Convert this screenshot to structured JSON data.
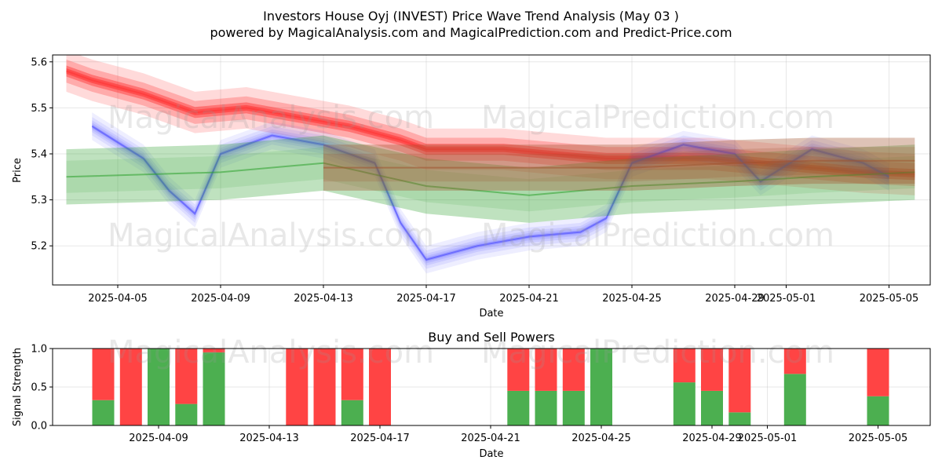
{
  "title_line1": "Investors House Oyj (INVEST) Price Wave Trend Analysis (May 03 )",
  "title_line2": "powered by MagicalAnalysis.com and MagicalPrediction.com and Predict-Price.com",
  "watermarks": [
    "MagicalAnalysis.com",
    "MagicalPrediction.com",
    "MagicalAnalysis.com",
    "MagicalPrediction.com",
    "MagicalAnalysis.com",
    "MagicalPrediction.com"
  ],
  "colors": {
    "red_band": "#ff0000",
    "blue_band": "#0000ff",
    "green_band": "#2ca02c",
    "buy_bar": "#4caf50",
    "sell_bar": "#ff4444"
  },
  "chart_data": [
    {
      "type": "area",
      "xlabel": "Date",
      "ylabel": "Price",
      "ylim": [
        5.115,
        5.615
      ],
      "yticks": [
        5.2,
        5.3,
        5.4,
        5.5,
        5.6
      ],
      "ytick_labels": [
        "5.2",
        "5.3",
        "5.4",
        "5.5",
        "5.6"
      ],
      "xticks": [
        "2025-04-05",
        "2025-04-09",
        "2025-04-13",
        "2025-04-17",
        "2025-04-21",
        "2025-04-25",
        "2025-04-29",
        "2025-05-01",
        "2025-05-05"
      ],
      "grid": true,
      "series": [
        {
          "color": "red",
          "x": [
            "2025-04-03",
            "2025-04-04",
            "2025-04-06",
            "2025-04-08",
            "2025-04-10",
            "2025-04-12",
            "2025-04-14",
            "2025-04-16",
            "2025-04-17",
            "2025-04-20",
            "2025-04-22",
            "2025-04-24",
            "2025-04-26",
            "2025-04-28",
            "2025-04-30",
            "2025-05-02",
            "2025-05-04",
            "2025-05-06"
          ],
          "values": [
            5.58,
            5.56,
            5.53,
            5.49,
            5.5,
            5.48,
            5.46,
            5.43,
            5.41,
            5.41,
            5.4,
            5.39,
            5.39,
            5.39,
            5.38,
            5.37,
            5.36,
            5.355
          ]
        },
        {
          "color": "blue",
          "x": [
            "2025-04-04",
            "2025-04-06",
            "2025-04-07",
            "2025-04-08",
            "2025-04-09",
            "2025-04-11",
            "2025-04-13",
            "2025-04-15",
            "2025-04-16",
            "2025-04-17",
            "2025-04-19",
            "2025-04-21",
            "2025-04-23",
            "2025-04-24",
            "2025-04-25",
            "2025-04-27",
            "2025-04-29",
            "2025-04-30",
            "2025-05-02",
            "2025-05-04",
            "2025-05-05"
          ],
          "values": [
            5.46,
            5.39,
            5.32,
            5.27,
            5.4,
            5.44,
            5.42,
            5.38,
            5.25,
            5.17,
            5.2,
            5.22,
            5.23,
            5.26,
            5.38,
            5.42,
            5.4,
            5.34,
            5.41,
            5.38,
            5.35
          ]
        },
        {
          "color": "green",
          "x": [
            "2025-04-03",
            "2025-04-09",
            "2025-04-13",
            "2025-04-17",
            "2025-04-21",
            "2025-04-25",
            "2025-04-29",
            "2025-05-02",
            "2025-05-06"
          ],
          "values": [
            5.35,
            5.36,
            5.38,
            5.33,
            5.31,
            5.33,
            5.34,
            5.35,
            5.36
          ]
        },
        {
          "color": "brown",
          "x": [
            "2025-04-13",
            "2025-04-17",
            "2025-04-21",
            "2025-04-25",
            "2025-04-29",
            "2025-05-02",
            "2025-05-06"
          ],
          "values": [
            5.37,
            5.37,
            5.37,
            5.37,
            5.38,
            5.385,
            5.385
          ]
        }
      ]
    },
    {
      "type": "bar",
      "title": "Buy and Sell Powers",
      "xlabel": "Date",
      "ylabel": "Signal Strength",
      "ylim": [
        0,
        1
      ],
      "yticks": [
        0,
        0.5,
        1
      ],
      "ytick_labels": [
        "0.0",
        "0.5",
        "1.0"
      ],
      "xticks": [
        "2025-04-09",
        "2025-04-13",
        "2025-04-17",
        "2025-04-21",
        "2025-04-25",
        "2025-04-29",
        "2025-05-01",
        "2025-05-05"
      ],
      "categories": [
        "2025-04-07",
        "2025-04-08",
        "2025-04-09",
        "2025-04-10",
        "2025-04-11",
        "2025-04-14",
        "2025-04-15",
        "2025-04-16",
        "2025-04-17",
        "2025-04-22",
        "2025-04-23",
        "2025-04-24",
        "2025-04-25",
        "2025-04-28",
        "2025-04-29",
        "2025-04-30",
        "2025-05-02",
        "2025-05-05"
      ],
      "series": [
        {
          "name": "Buy",
          "values": [
            0.33,
            0.0,
            1.0,
            0.28,
            0.95,
            0.0,
            0.0,
            0.33,
            0.0,
            0.45,
            0.45,
            0.45,
            1.0,
            0.56,
            0.45,
            0.17,
            0.67,
            0.38
          ]
        },
        {
          "name": "Sell",
          "values": [
            0.67,
            1.0,
            0.0,
            0.72,
            0.05,
            1.0,
            1.0,
            0.67,
            1.0,
            0.55,
            0.55,
            0.55,
            0.0,
            0.44,
            0.55,
            0.83,
            0.33,
            0.62
          ]
        }
      ]
    }
  ]
}
